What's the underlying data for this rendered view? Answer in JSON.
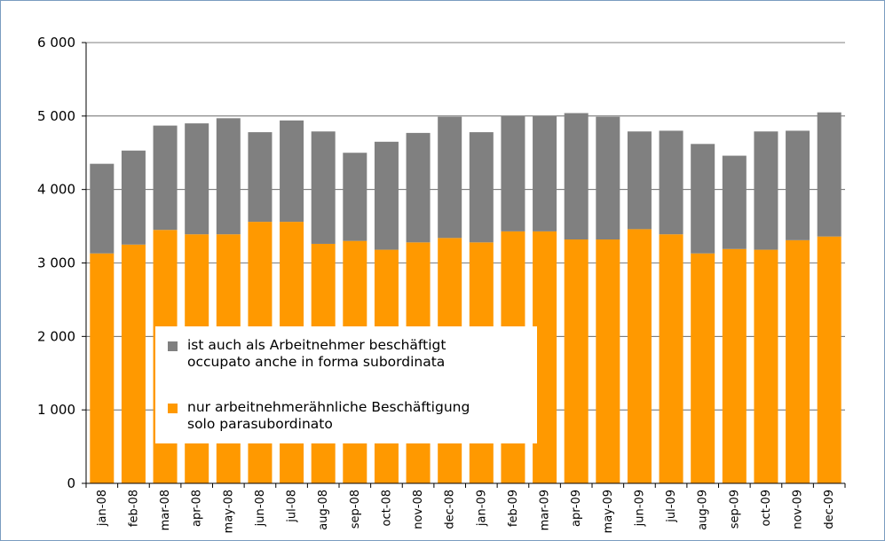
{
  "chart_data": {
    "type": "stacked_bar",
    "categories": [
      "jan-08",
      "feb-08",
      "mar-08",
      "apr-08",
      "may-08",
      "jun-08",
      "jul-08",
      "aug-08",
      "sep-08",
      "oct-08",
      "nov-08",
      "dec-08",
      "jan-09",
      "feb-09",
      "mar-09",
      "apr-09",
      "may-09",
      "jun-09",
      "jul-09",
      "aug-09",
      "sep-09",
      "oct-09",
      "nov-09",
      "dec-09"
    ],
    "series": [
      {
        "name": "nur arbeitnehmerähnliche Beschäftigung\nsolo parasubordinato",
        "color": "#ff9900",
        "values": [
          3130,
          3250,
          3450,
          3390,
          3390,
          3560,
          3560,
          3260,
          3300,
          3180,
          3280,
          3340,
          3280,
          3430,
          3430,
          3320,
          3320,
          3460,
          3390,
          3130,
          3190,
          3180,
          3310,
          3360
        ]
      },
      {
        "name": "ist auch als Arbeitnehmer beschäftigt\noccupato anche in forma subordinata",
        "color": "#808080",
        "values": [
          1220,
          1280,
          1420,
          1510,
          1580,
          1220,
          1380,
          1530,
          1200,
          1470,
          1490,
          1650,
          1500,
          1570,
          1570,
          1720,
          1670,
          1330,
          1410,
          1490,
          1270,
          1610,
          1490,
          1690
        ]
      }
    ],
    "ylim": [
      0,
      6000
    ],
    "yticks": [
      0,
      {
        "value": 1000,
        "label": "1 000"
      },
      {
        "value": 2000,
        "label": "2 000"
      },
      {
        "value": 3000,
        "label": "3 000"
      },
      {
        "value": 4000,
        "label": "4 000"
      },
      {
        "value": 5000,
        "label": "5 000"
      },
      {
        "value": 6000,
        "label": "6 000"
      }
    ],
    "grid": true
  }
}
